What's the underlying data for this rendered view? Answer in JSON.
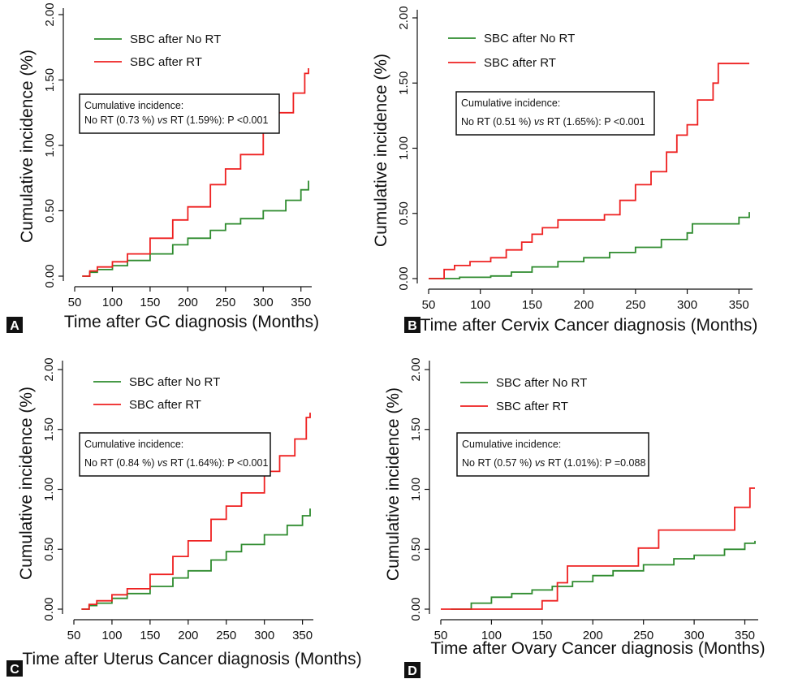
{
  "colors": {
    "no_rt": "#2e8b2e",
    "rt": "#ee2020",
    "axis": "#111111",
    "panel_letter_bg": "#111111"
  },
  "chart_data": [
    {
      "type": "line",
      "panel_letter": "A",
      "xlabel": "Time after GC diagnosis (Months)",
      "ylabel": "Cumulative incidence (%)",
      "xlim": [
        50,
        360
      ],
      "ylim": [
        0,
        2
      ],
      "x_ticks": [
        "50",
        "100",
        "150",
        "200",
        "250",
        "300",
        "350"
      ],
      "y_ticks": [
        "0.00",
        "0.50",
        "1.00",
        "1.50",
        "2.00"
      ],
      "legend": [
        "SBC after No RT",
        "SBC after RT"
      ],
      "legend_placement": "top-left",
      "annotation_title": "Cumulative incidence:",
      "annotation_parts": [
        "No RT (0.73 %) ",
        "vs",
        " RT (1.59%): P <0.001"
      ],
      "series": [
        {
          "name": "SBC after No RT",
          "color_key": "no_rt",
          "x": [
            60,
            70,
            80,
            100,
            120,
            150,
            180,
            200,
            230,
            250,
            270,
            300,
            330,
            350,
            360
          ],
          "y": [
            0,
            0.03,
            0.05,
            0.08,
            0.12,
            0.17,
            0.24,
            0.29,
            0.35,
            0.4,
            0.44,
            0.5,
            0.58,
            0.66,
            0.73
          ]
        },
        {
          "name": "SBC after RT",
          "color_key": "rt",
          "x": [
            60,
            70,
            80,
            100,
            120,
            150,
            180,
            200,
            230,
            250,
            270,
            300,
            320,
            340,
            355,
            360
          ],
          "y": [
            0,
            0.04,
            0.07,
            0.11,
            0.17,
            0.29,
            0.43,
            0.53,
            0.7,
            0.82,
            0.93,
            1.11,
            1.25,
            1.4,
            1.55,
            1.59
          ]
        }
      ]
    },
    {
      "type": "line",
      "panel_letter": "B",
      "xlabel": "Time after Cervix Cancer diagnosis (Months)",
      "ylabel": "Cumulative incidence (%)",
      "xlim": [
        50,
        360
      ],
      "ylim": [
        0,
        2
      ],
      "x_ticks": [
        "50",
        "100",
        "150",
        "200",
        "250",
        "300",
        "350"
      ],
      "y_ticks": [
        "0.00",
        "0.50",
        "1.00",
        "1.50",
        "2.00"
      ],
      "legend": [
        "SBC after No RT",
        "SBC after RT"
      ],
      "legend_placement": "top-left",
      "annotation_title": "Cumulative incidence:",
      "annotation_parts": [
        "No RT (0.51 %) ",
        "vs",
        " RT (1.65%): P <0.001"
      ],
      "series": [
        {
          "name": "SBC after No RT",
          "color_key": "no_rt",
          "x": [
            50,
            80,
            110,
            130,
            150,
            175,
            200,
            225,
            250,
            275,
            300,
            305,
            330,
            350,
            360
          ],
          "y": [
            0,
            0.01,
            0.02,
            0.05,
            0.09,
            0.13,
            0.16,
            0.2,
            0.24,
            0.3,
            0.35,
            0.42,
            0.42,
            0.47,
            0.51
          ]
        },
        {
          "name": "SBC after RT",
          "color_key": "rt",
          "x": [
            50,
            65,
            75,
            90,
            110,
            125,
            140,
            150,
            160,
            175,
            200,
            220,
            235,
            250,
            265,
            280,
            290,
            300,
            310,
            325,
            330,
            360
          ],
          "y": [
            0,
            0.07,
            0.1,
            0.13,
            0.16,
            0.22,
            0.28,
            0.34,
            0.39,
            0.45,
            0.45,
            0.49,
            0.6,
            0.72,
            0.82,
            0.97,
            1.1,
            1.18,
            1.37,
            1.5,
            1.65,
            1.65
          ]
        }
      ]
    },
    {
      "type": "line",
      "panel_letter": "C",
      "xlabel": "Time after Uterus Cancer diagnosis (Months)",
      "ylabel": "Cumulative incidence (%)",
      "xlim": [
        50,
        360
      ],
      "ylim": [
        0,
        2
      ],
      "x_ticks": [
        "50",
        "100",
        "150",
        "200",
        "250",
        "300",
        "350"
      ],
      "y_ticks": [
        "0.00",
        "0.50",
        "1.00",
        "1.50",
        "2.00"
      ],
      "legend": [
        "SBC after No RT",
        "SBC after RT"
      ],
      "legend_placement": "top-left",
      "annotation_title": "Cumulative incidence:",
      "annotation_parts": [
        "No RT (0.84 %) ",
        "vs",
        " RT (1.64%): P <0.001"
      ],
      "series": [
        {
          "name": "SBC after No RT",
          "color_key": "no_rt",
          "x": [
            60,
            70,
            80,
            100,
            120,
            150,
            180,
            200,
            230,
            250,
            270,
            300,
            330,
            350,
            360
          ],
          "y": [
            0,
            0.03,
            0.05,
            0.09,
            0.13,
            0.19,
            0.26,
            0.32,
            0.41,
            0.48,
            0.54,
            0.62,
            0.7,
            0.78,
            0.84
          ]
        },
        {
          "name": "SBC after RT",
          "color_key": "rt",
          "x": [
            60,
            70,
            80,
            100,
            120,
            150,
            180,
            200,
            230,
            250,
            270,
            300,
            320,
            340,
            355,
            360
          ],
          "y": [
            0,
            0.04,
            0.07,
            0.12,
            0.17,
            0.29,
            0.44,
            0.57,
            0.75,
            0.86,
            0.97,
            1.15,
            1.28,
            1.42,
            1.6,
            1.64
          ]
        }
      ]
    },
    {
      "type": "line",
      "panel_letter": "D",
      "xlabel": "Time after Ovary Cancer diagnosis (Months)",
      "ylabel": "Cumulative incidence (%)",
      "xlim": [
        50,
        360
      ],
      "ylim": [
        0,
        2
      ],
      "x_ticks": [
        "50",
        "100",
        "150",
        "200",
        "250",
        "300",
        "350"
      ],
      "y_ticks": [
        "0.00",
        "0.50",
        "1.00",
        "1.50",
        "2.00"
      ],
      "legend": [
        "SBC after No RT",
        "SBC after RT"
      ],
      "legend_placement": "top-left",
      "annotation_title": "Cumulative incidence:",
      "annotation_parts": [
        "No RT (0.57 %) ",
        "vs",
        " RT (1.01%): P =0.088"
      ],
      "series": [
        {
          "name": "SBC after No RT",
          "color_key": "no_rt",
          "x": [
            60,
            80,
            100,
            120,
            140,
            160,
            180,
            200,
            220,
            250,
            280,
            300,
            330,
            350,
            360
          ],
          "y": [
            0,
            0.05,
            0.1,
            0.13,
            0.16,
            0.19,
            0.23,
            0.28,
            0.32,
            0.37,
            0.42,
            0.45,
            0.5,
            0.55,
            0.57
          ]
        },
        {
          "name": "SBC after RT",
          "color_key": "rt",
          "x": [
            50,
            135,
            150,
            165,
            175,
            230,
            245,
            265,
            310,
            340,
            355,
            360
          ],
          "y": [
            0,
            0,
            0.07,
            0.22,
            0.36,
            0.36,
            0.51,
            0.66,
            0.66,
            0.85,
            1.01,
            1.01
          ]
        }
      ]
    }
  ]
}
